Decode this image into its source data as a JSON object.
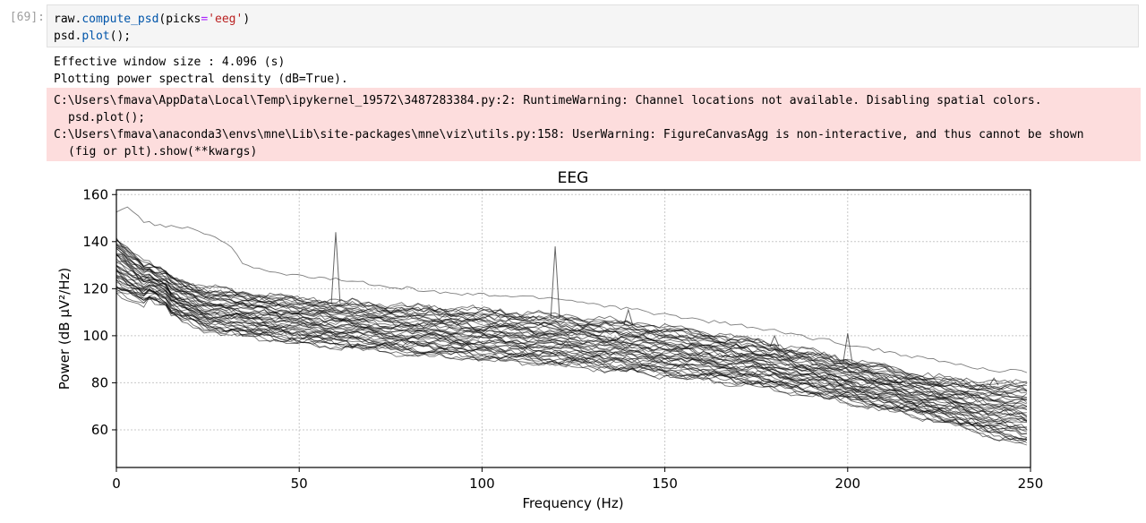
{
  "cell": {
    "prompt": "[69]:",
    "code": {
      "line1": {
        "obj": "raw.",
        "fn": "compute_psd",
        "open": "(picks",
        "eq": "=",
        "str": "'eeg'",
        "close": ")"
      },
      "line2": {
        "obj": "psd.",
        "fn": "plot",
        "rest": "();"
      }
    }
  },
  "output": {
    "stdout": [
      "Effective window size : 4.096 (s)",
      "Plotting power spectral density (dB=True)."
    ],
    "stderr": [
      "C:\\Users\\fmava\\AppData\\Local\\Temp\\ipykernel_19572\\3487283384.py:2: RuntimeWarning: Channel locations not available. Disabling spatial colors.",
      "psd.plot();",
      "C:\\Users\\fmava\\anaconda3\\envs\\mne\\Lib\\site-packages\\mne\\viz\\utils.py:158: UserWarning: FigureCanvasAgg is non-interactive, and thus cannot be shown",
      "(fig or plt).show(**kwargs)"
    ]
  },
  "chart_data": {
    "type": "line",
    "title": "EEG",
    "xlabel": "Frequency (Hz)",
    "ylabel": "Power (dB µV²/Hz)",
    "xlim": [
      0,
      250
    ],
    "ylim": [
      44,
      162
    ],
    "xticks": [
      0,
      50,
      100,
      150,
      200,
      250
    ],
    "xtick_labels": [
      "0",
      "50",
      "100",
      "150",
      "200",
      "250"
    ],
    "yticks": [
      60,
      80,
      100,
      120,
      140,
      160
    ],
    "ytick_labels": [
      "60",
      "80",
      "100",
      "120",
      "140",
      "160"
    ],
    "grid": true,
    "legend": "none",
    "series_color": "#000000",
    "envelope": {
      "x": [
        0,
        10,
        25,
        50,
        75,
        100,
        125,
        150,
        175,
        200,
        225,
        240,
        250
      ],
      "upper": [
        142,
        128,
        120,
        116,
        113,
        111,
        108,
        104,
        98,
        90,
        82,
        80,
        80
      ],
      "lower": [
        118,
        112,
        102,
        97,
        93,
        90,
        87,
        83,
        79,
        72,
        64,
        57,
        53
      ]
    },
    "outlier_series": {
      "x": [
        0,
        3,
        8,
        12,
        20,
        30,
        35,
        45,
        60,
        90,
        120,
        180,
        240,
        250
      ],
      "y": [
        152,
        155,
        148,
        147,
        146,
        140,
        130,
        126,
        124,
        118,
        116,
        102,
        85,
        85
      ]
    },
    "line_noise_peaks": [
      {
        "x": 60,
        "y": 144
      },
      {
        "x": 120,
        "y": 138
      },
      {
        "x": 140,
        "y": 111
      },
      {
        "x": 180,
        "y": 100
      },
      {
        "x": 200,
        "y": 101
      },
      {
        "x": 240,
        "y": 82
      }
    ]
  }
}
